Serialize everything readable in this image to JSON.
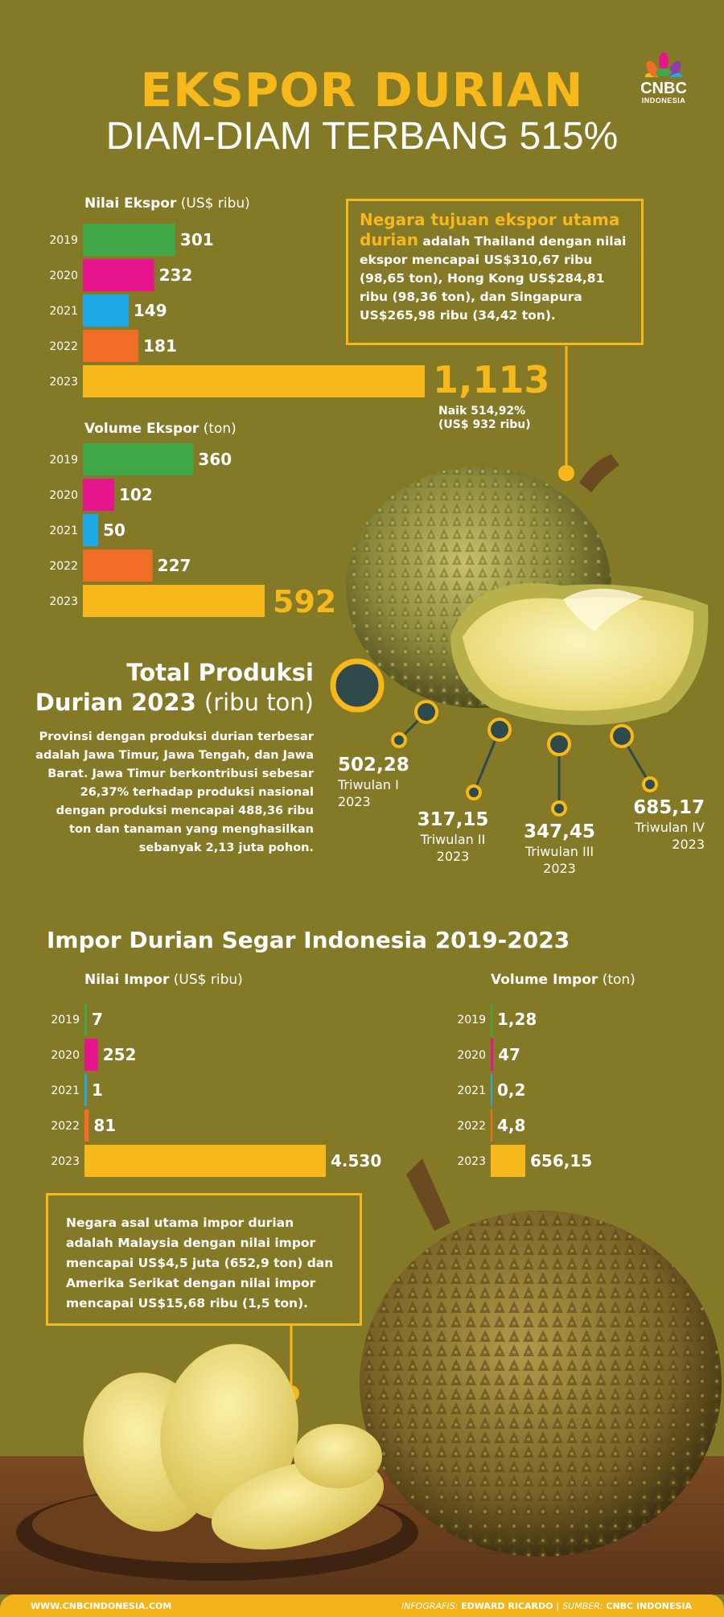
{
  "header": {
    "title": "EKSPOR DURIAN",
    "subtitle": "DIAM-DIAM TERBANG 515%",
    "logo_text": "CNBC",
    "logo_sub": "INDONESIA"
  },
  "export_value": {
    "label": "Nilai Ekspor",
    "unit": "(US$ ribu)",
    "highlight_value": "1,113",
    "note_line1": "Naik 514,92%",
    "note_line2": "(US$ 932 ribu)"
  },
  "export_volume": {
    "label": "Volume Ekspor",
    "unit": "(ton)"
  },
  "callout_export": {
    "highlight": "Negara tujuan ekspor utama durian",
    "text": " adalah Thailand dengan nilai ekspor mencapai US$310,67 ribu (98,65 ton), Hong Kong US$284,81 ribu (98,36 ton), dan Singapura US$265,98 ribu (34,42 ton)."
  },
  "production": {
    "title_line1": "Total Produksi",
    "title_line2": "Durian 2023",
    "unit": "(ribu ton)",
    "description": "Provinsi dengan produksi durian terbesar adalah Jawa Timur, Jawa Tengah, dan Jawa Barat. Jawa Timur berkontribusi sebesar 26,37% terhadap produksi nasional dengan produksi mencapai 488,36 ribu ton dan tanaman yang menghasilkan sebanyak 2,13 juta pohon.",
    "quarters": [
      {
        "value": "502,28",
        "label": "Triwulan I",
        "year": "2023"
      },
      {
        "value": "317,15",
        "label": "Triwulan II",
        "year": "2023"
      },
      {
        "value": "347,45",
        "label": "Triwulan III",
        "year": "2023"
      },
      {
        "value": "685,17",
        "label": "Triwulan IV",
        "year": "2023"
      }
    ]
  },
  "import": {
    "heading": "Impor Durian Segar Indonesia 2019-2023",
    "value_label": "Nilai Impor",
    "value_unit": "(US$ ribu)",
    "volume_label": "Volume Impor",
    "volume_unit": "(ton)"
  },
  "callout_import": {
    "text": "Negara asal utama impor durian adalah Malaysia dengan nilai impor mencapai US$4,5 juta (652,9 ton) dan Amerika Serikat dengan nilai impor mencapai US$15,68 ribu (1,5 ton)."
  },
  "footer": {
    "website": "WWW.CNBCINDONESIA.COM",
    "credit_label": "INFOGRAFIS:",
    "credit_name": "EDWARD RICARDO",
    "source_label": "SUMBER:",
    "source_name": "CNBC INDONESIA"
  },
  "colors": {
    "background": "#847926",
    "accent": "#f6b81a",
    "c2019": "#40a847",
    "c2020": "#e6158b",
    "c2021": "#1fa9e6",
    "c2022": "#ef6d25",
    "c2023": "#f6b81a"
  },
  "chart_data": [
    {
      "type": "bar",
      "orientation": "horizontal",
      "title": "Nilai Ekspor (US$ ribu)",
      "categories": [
        "2019",
        "2020",
        "2021",
        "2022",
        "2023"
      ],
      "values": [
        301,
        232,
        149,
        181,
        1113
      ],
      "value_labels": [
        "301",
        "232",
        "149",
        "181",
        "1,113"
      ]
    },
    {
      "type": "bar",
      "orientation": "horizontal",
      "title": "Volume Ekspor (ton)",
      "categories": [
        "2019",
        "2020",
        "2021",
        "2022",
        "2023"
      ],
      "values": [
        360,
        102,
        50,
        227,
        592
      ],
      "value_labels": [
        "360",
        "102",
        "50",
        "227",
        "592"
      ]
    },
    {
      "type": "bar",
      "orientation": "horizontal",
      "title": "Nilai Impor (US$ ribu)",
      "categories": [
        "2019",
        "2020",
        "2021",
        "2022",
        "2023"
      ],
      "values": [
        7,
        252,
        1,
        81,
        4530
      ],
      "value_labels": [
        "7",
        "252",
        "1",
        "81",
        "4.530"
      ]
    },
    {
      "type": "bar",
      "orientation": "horizontal",
      "title": "Volume Impor (ton)",
      "categories": [
        "2019",
        "2020",
        "2021",
        "2022",
        "2023"
      ],
      "values": [
        1.28,
        47,
        0.2,
        4.8,
        656.15
      ],
      "value_labels": [
        "1,28",
        "47",
        "0,2",
        "4,8",
        "656,15"
      ]
    }
  ]
}
